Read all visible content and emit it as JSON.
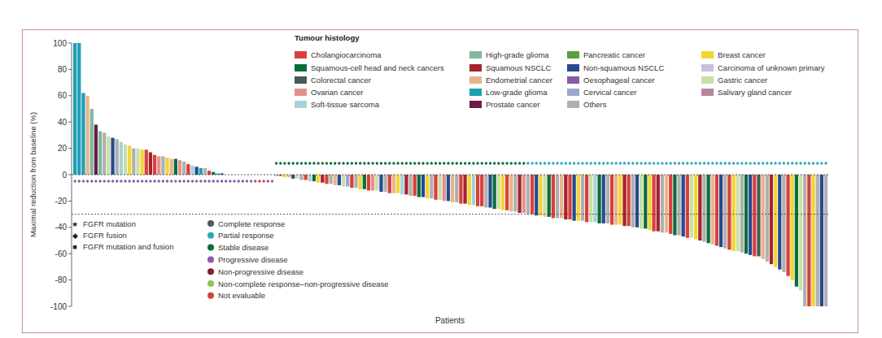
{
  "chart_data": {
    "type": "bar",
    "y_label": "Maximal reduction from baseline (%)",
    "x_label": "Patients",
    "ylim": [
      -100,
      100
    ],
    "yticks": [
      -100,
      -80,
      -60,
      -40,
      -20,
      0,
      20,
      40,
      60,
      80,
      100
    ],
    "reference_lines": [
      0,
      -30
    ],
    "legend_title": "Tumour histology",
    "histology_legend": [
      {
        "name": "Cholangiocarcinoma",
        "color": "#d9403a"
      },
      {
        "name": "High-grade glioma",
        "color": "#7fb89a"
      },
      {
        "name": "Pancreatic cancer",
        "color": "#5aa03c"
      },
      {
        "name": "Breast cancer",
        "color": "#f2d535"
      },
      {
        "name": "Squamous-cell head and neck cancers",
        "color": "#0b6e3a"
      },
      {
        "name": "Squamous NSCLC",
        "color": "#a3242d"
      },
      {
        "name": "Non-squamous NSCLC",
        "color": "#274a8f"
      },
      {
        "name": "Carcinoma of unknown primary",
        "color": "#c5c0e0"
      },
      {
        "name": "Colorectal cancer",
        "color": "#4a5a55"
      },
      {
        "name": "Endometrial cancer",
        "color": "#e8b48e"
      },
      {
        "name": "Oesophageal cancer",
        "color": "#8a5aa6"
      },
      {
        "name": "Gastric cancer",
        "color": "#c9e0a6"
      },
      {
        "name": "Ovarian cancer",
        "color": "#e0938b"
      },
      {
        "name": "Low-grade glioma",
        "color": "#1e9fb5"
      },
      {
        "name": "Cervical cancer",
        "color": "#9aa6d4"
      },
      {
        "name": "Salivary gland cancer",
        "color": "#b8869a"
      },
      {
        "name": "Soft-tissue sarcoma",
        "color": "#a9d1dc"
      },
      {
        "name": "Prostate cancer",
        "color": "#6b1a4a"
      },
      {
        "name": "Others",
        "color": "#b0b0b0"
      }
    ],
    "marker_legend": [
      {
        "symbol": "★",
        "label": "FGFR mutation"
      },
      {
        "symbol": "◆",
        "label": "FGFR fusion"
      },
      {
        "symbol": "■",
        "label": "FGFR mutation and fusion"
      }
    ],
    "response_legend": [
      {
        "name": "Complete response",
        "color": "#4a5a60"
      },
      {
        "name": "Partial response",
        "color": "#2aa8c0"
      },
      {
        "name": "Stable disease",
        "color": "#0b6e3a"
      },
      {
        "name": "Progressive disease",
        "color": "#8a5aa6"
      },
      {
        "name": "Non-progressive disease",
        "color": "#8b1a3a"
      },
      {
        "name": "Non-complete response–non-progressive disease",
        "color": "#8fc15a"
      },
      {
        "name": "Not evaluable",
        "color": "#d9403a"
      }
    ],
    "values": [
      100,
      100,
      62,
      60,
      50,
      38,
      33,
      32,
      29,
      28,
      27,
      25,
      23,
      22,
      20,
      20,
      19,
      19,
      17,
      15,
      14,
      14,
      13,
      12,
      12,
      11,
      10,
      8,
      7,
      6,
      5,
      5,
      3,
      2,
      1,
      1,
      0,
      0,
      0,
      0,
      0,
      0,
      0,
      0,
      0,
      0,
      0,
      0,
      -1,
      -1,
      -2,
      -2,
      -3,
      -3,
      -4,
      -4,
      -5,
      -5,
      -6,
      -6,
      -7,
      -7,
      -8,
      -8,
      -9,
      -9,
      -10,
      -10,
      -11,
      -11,
      -12,
      -12,
      -12,
      -13,
      -13,
      -14,
      -14,
      -14,
      -15,
      -15,
      -16,
      -16,
      -17,
      -17,
      -18,
      -18,
      -19,
      -19,
      -20,
      -20,
      -21,
      -21,
      -22,
      -22,
      -23,
      -23,
      -24,
      -24,
      -25,
      -25,
      -26,
      -26,
      -27,
      -27,
      -28,
      -28,
      -29,
      -29,
      -30,
      -30,
      -31,
      -31,
      -32,
      -32,
      -33,
      -33,
      -33,
      -34,
      -34,
      -35,
      -35,
      -35,
      -36,
      -36,
      -36,
      -37,
      -37,
      -37,
      -38,
      -38,
      -38,
      -39,
      -39,
      -40,
      -40,
      -41,
      -41,
      -42,
      -43,
      -43,
      -44,
      -44,
      -45,
      -46,
      -46,
      -47,
      -48,
      -48,
      -49,
      -50,
      -51,
      -52,
      -53,
      -54,
      -55,
      -56,
      -57,
      -58,
      -58,
      -59,
      -60,
      -61,
      -62,
      -62,
      -64,
      -66,
      -68,
      -70,
      -72,
      -74,
      -77,
      -80,
      -85,
      -88,
      -100,
      -100,
      -100,
      -100,
      -100,
      -100
    ],
    "colors": [
      "#1e9fb5",
      "#1e9fb5",
      "#1e9fb5",
      "#e8b48e",
      "#7fb89a",
      "#6b1a4a",
      "#7fb89a",
      "#b0b0b0",
      "#c9e0a6",
      "#274a8f",
      "#b0b0b0",
      "#a9d1dc",
      "#c9e0a6",
      "#f2d535",
      "#b0b0b0",
      "#c9e0a6",
      "#f2d535",
      "#d9403a",
      "#a3242d",
      "#d9403a",
      "#e0938b",
      "#b0b0b0",
      "#f2d535",
      "#e8b48e",
      "#0b6e3a",
      "#e0938b",
      "#b0b0b0",
      "#d9403a",
      "#a9d1dc",
      "#274a8f",
      "#1e9fb5",
      "#b0b0b0",
      "#d9403a",
      "#0b6e3a",
      "#1e9fb5",
      "#274a8f",
      "#b0b0b0",
      "#d9403a",
      "#274a8f",
      "#a9d1dc",
      "#0b6e3a",
      "#e8b48e",
      "#b0b0b0",
      "#f2d535",
      "#d9403a",
      "#9aa6d4",
      "#c9e0a6",
      "#b0b0b0",
      "#b0b0b0",
      "#d9403a",
      "#f2d535",
      "#e8b48e",
      "#274a8f",
      "#c9e0a6",
      "#b0b0b0",
      "#d9403a",
      "#a9d1dc",
      "#0b6e3a",
      "#f2d535",
      "#a3242d",
      "#d9403a",
      "#b0b0b0",
      "#e8b48e",
      "#274a8f",
      "#c9e0a6",
      "#9aa6d4",
      "#d9403a",
      "#b0b0b0",
      "#f2d535",
      "#0b6e3a",
      "#d9403a",
      "#e0938b",
      "#c9e0a6",
      "#274a8f",
      "#b0b0b0",
      "#d9403a",
      "#e8b48e",
      "#f2d535",
      "#a9d1dc",
      "#a3242d",
      "#b0b0b0",
      "#d9403a",
      "#0b6e3a",
      "#274a8f",
      "#f2d535",
      "#b0b0b0",
      "#d9403a",
      "#c9e0a6",
      "#e0938b",
      "#274a8f",
      "#e8b48e",
      "#b0b0b0",
      "#d9403a",
      "#a3242d",
      "#f2d535",
      "#a9d1dc",
      "#d9403a",
      "#d9403a",
      "#b0b0b0",
      "#274a8f",
      "#0b6e3a",
      "#c9e0a6",
      "#f2d535",
      "#d9403a",
      "#e8b48e",
      "#b0b0b0",
      "#a3242d",
      "#e0938b",
      "#b0b0b0",
      "#d9403a",
      "#274a8f",
      "#f2d535",
      "#c9e0a6",
      "#0b6e3a",
      "#d9403a",
      "#b0b0b0",
      "#e8b48e",
      "#a3242d",
      "#d9403a",
      "#274a8f",
      "#f2d535",
      "#b0b0b0",
      "#d9403a",
      "#c9e0a6",
      "#a9d1dc",
      "#0b6e3a",
      "#274a8f",
      "#b0b0b0",
      "#d9403a",
      "#e8b48e",
      "#f2d535",
      "#a3242d",
      "#d9403a",
      "#b0b0b0",
      "#274a8f",
      "#c9e0a6",
      "#0b6e3a",
      "#f2d535",
      "#d9403a",
      "#a3242d",
      "#b0b0b0",
      "#e8b48e",
      "#d9403a",
      "#0b6e3a",
      "#b0b0b0",
      "#274a8f",
      "#d9403a",
      "#c9e0a6",
      "#f2d535",
      "#a3242d",
      "#b0b0b0",
      "#0b6e3a",
      "#e8b48e",
      "#d9403a",
      "#274a8f",
      "#b0b0b0",
      "#d9403a",
      "#f2d535",
      "#c9e0a6",
      "#b0b0b0",
      "#0b6e3a",
      "#274a8f",
      "#d9403a",
      "#4a5a55",
      "#e8b48e",
      "#b0b0b0",
      "#a3242d",
      "#f2d535",
      "#274a8f",
      "#b0b0b0",
      "#d9403a",
      "#f2d535",
      "#0b6e3a",
      "#c9e0a6",
      "#b0b0b0",
      "#d9403a",
      "#f2d535",
      "#b0b0b0",
      "#274a8f",
      "#b0b0b0"
    ],
    "responses": [
      "Progressive disease",
      "Progressive disease",
      "Progressive disease",
      "Progressive disease",
      "Progressive disease",
      "Progressive disease",
      "Progressive disease",
      "Progressive disease",
      "Progressive disease",
      "Progressive disease",
      "Progressive disease",
      "Progressive disease",
      "Progressive disease",
      "Progressive disease",
      "Progressive disease",
      "Progressive disease",
      "Progressive disease",
      "Progressive disease",
      "Progressive disease",
      "Progressive disease",
      "Progressive disease",
      "Progressive disease",
      "Progressive disease",
      "Progressive disease",
      "Progressive disease",
      "Progressive disease",
      "Progressive disease",
      "Progressive disease",
      "Progressive disease",
      "Progressive disease",
      "Progressive disease",
      "Progressive disease",
      "Progressive disease",
      "Progressive disease",
      "Progressive disease",
      "Progressive disease",
      "Progressive disease",
      "Progressive disease",
      "Progressive disease",
      "Progressive disease",
      "Progressive disease",
      "Progressive disease",
      "Progressive disease",
      "Progressive disease",
      "Not evaluable",
      "Not evaluable",
      "Progressive disease",
      "Progressive disease",
      "Stable disease",
      "Stable disease",
      "Stable disease",
      "Stable disease",
      "Stable disease",
      "Stable disease",
      "Stable disease",
      "Stable disease",
      "Stable disease",
      "Stable disease",
      "Stable disease",
      "Stable disease",
      "Stable disease",
      "Stable disease",
      "Stable disease",
      "Stable disease",
      "Stable disease",
      "Stable disease",
      "Stable disease",
      "Stable disease",
      "Stable disease",
      "Stable disease",
      "Stable disease",
      "Stable disease",
      "Stable disease",
      "Stable disease",
      "Stable disease",
      "Stable disease",
      "Stable disease",
      "Stable disease",
      "Stable disease",
      "Stable disease",
      "Stable disease",
      "Stable disease",
      "Stable disease",
      "Stable disease",
      "Stable disease",
      "Stable disease",
      "Stable disease",
      "Stable disease",
      "Stable disease",
      "Stable disease",
      "Stable disease",
      "Stable disease",
      "Stable disease",
      "Stable disease",
      "Stable disease",
      "Stable disease",
      "Stable disease",
      "Stable disease",
      "Stable disease",
      "Stable disease",
      "Stable disease",
      "Stable disease",
      "Stable disease",
      "Stable disease",
      "Stable disease",
      "Stable disease",
      "Stable disease",
      "Stable disease",
      "Partial response",
      "Partial response",
      "Partial response",
      "Partial response",
      "Partial response",
      "Partial response",
      "Partial response",
      "Partial response",
      "Partial response",
      "Partial response",
      "Partial response",
      "Partial response",
      "Partial response",
      "Partial response",
      "Partial response",
      "Partial response",
      "Partial response",
      "Partial response",
      "Partial response",
      "Partial response",
      "Partial response",
      "Partial response",
      "Partial response",
      "Partial response",
      "Partial response",
      "Partial response",
      "Partial response",
      "Partial response",
      "Partial response",
      "Partial response",
      "Partial response",
      "Partial response",
      "Partial response",
      "Partial response",
      "Partial response",
      "Partial response",
      "Partial response",
      "Partial response",
      "Partial response",
      "Partial response",
      "Partial response",
      "Partial response",
      "Partial response",
      "Partial response",
      "Partial response",
      "Partial response",
      "Partial response",
      "Partial response",
      "Partial response",
      "Partial response",
      "Partial response",
      "Partial response",
      "Partial response",
      "Partial response",
      "Partial response",
      "Partial response",
      "Partial response",
      "Partial response",
      "Partial response",
      "Partial response",
      "Partial response",
      "Partial response",
      "Partial response",
      "Partial response",
      "Partial response",
      "Partial response",
      "Partial response",
      "Partial response",
      "Partial response",
      "Partial response",
      "Partial response",
      "Partial response"
    ],
    "tick_labels": "y"
  }
}
